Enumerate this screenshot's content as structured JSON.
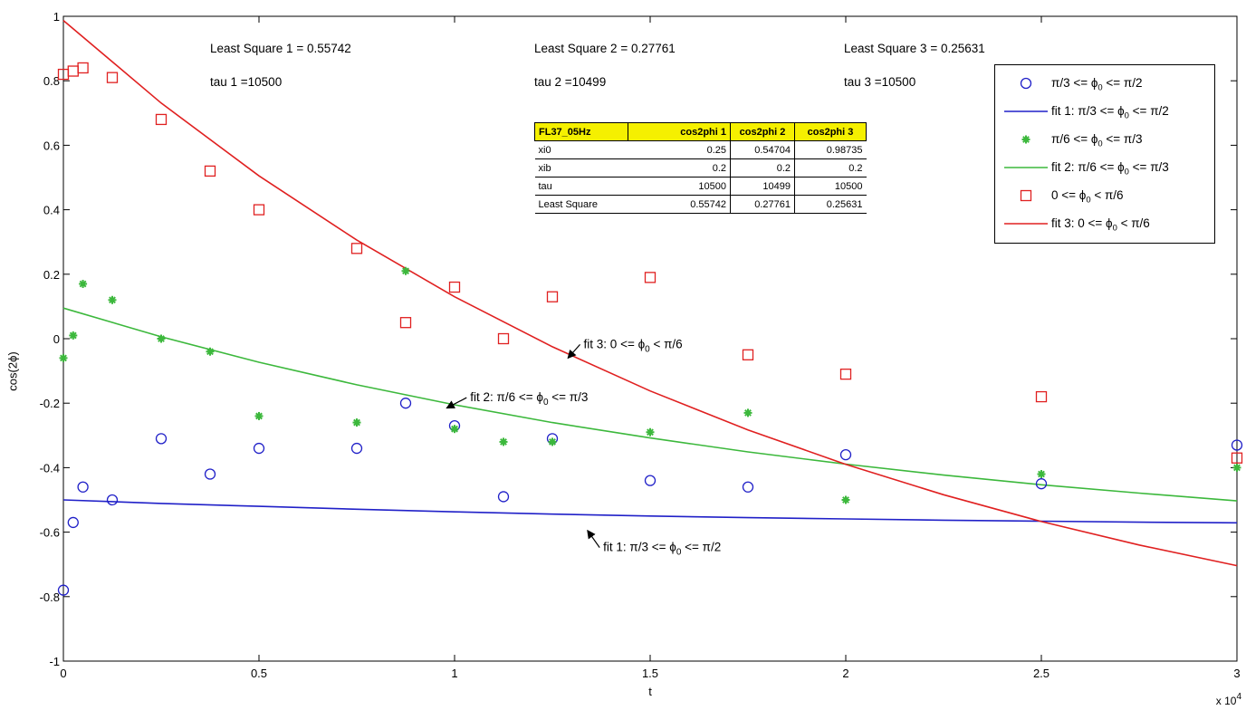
{
  "chart_data": {
    "type": "scatter",
    "xlabel": "t",
    "ylabel": "cos(2ϕ)",
    "x_multiplier_label": "x 10",
    "x_multiplier_exp": "4",
    "xlim": [
      0,
      30000
    ],
    "ylim": [
      -1,
      1
    ],
    "x_ticks": [
      0,
      5000,
      10000,
      15000,
      20000,
      25000,
      30000
    ],
    "x_tick_labels": [
      "0",
      "0.5",
      "1",
      "1.5",
      "2",
      "2.5",
      "3"
    ],
    "y_ticks": [
      -1,
      -0.8,
      -0.6,
      -0.4,
      -0.2,
      0,
      0.2,
      0.4,
      0.6,
      0.8,
      1
    ],
    "y_tick_labels": [
      "-1",
      "-0.8",
      "-0.6",
      "-0.4",
      "-0.2",
      "0",
      "0.2",
      "0.4",
      "0.6",
      "0.8",
      "1"
    ],
    "grid": false,
    "legend_position": "top-right",
    "series": [
      {
        "name": "π/3 <= ϕ₀ <= π/2",
        "legend_text": "π/3 <= ϕ",
        "legend_sub": "0",
        "legend_tail": " <= π/2",
        "kind": "points",
        "marker": "circle",
        "color": "#2020c8",
        "x": [
          0,
          250,
          500,
          1250,
          2500,
          3750,
          5000,
          7500,
          8750,
          10000,
          11250,
          12500,
          15000,
          17500,
          20000,
          25000,
          30000
        ],
        "y": [
          -0.78,
          -0.57,
          -0.46,
          -0.5,
          -0.31,
          -0.42,
          -0.34,
          -0.34,
          -0.2,
          -0.27,
          -0.49,
          -0.31,
          -0.44,
          -0.46,
          -0.36,
          -0.45,
          -0.33
        ]
      },
      {
        "name": "fit 1: π/3 <= ϕ₀ <= π/2",
        "legend_text": "fit 1: π/3 <= ϕ",
        "legend_sub": "0",
        "legend_tail": " <= π/2",
        "kind": "line",
        "color": "#2020c8",
        "x": [
          0,
          2500,
          5000,
          7500,
          10000,
          12500,
          15000,
          17500,
          20000,
          22500,
          25000,
          27500,
          30000
        ],
        "y": [
          -0.5,
          -0.511,
          -0.52,
          -0.529,
          -0.537,
          -0.544,
          -0.55,
          -0.555,
          -0.559,
          -0.563,
          -0.566,
          -0.569,
          -0.571
        ]
      },
      {
        "name": "π/6 <= ϕ₀ <= π/3",
        "legend_text": "π/6 <= ϕ",
        "legend_sub": "0",
        "legend_tail": " <= π/3",
        "kind": "points",
        "marker": "star",
        "color": "#3cb83c",
        "x": [
          0,
          250,
          500,
          1250,
          2500,
          3750,
          5000,
          7500,
          8750,
          10000,
          11250,
          12500,
          15000,
          17500,
          20000,
          25000,
          30000
        ],
        "y": [
          -0.06,
          0.01,
          0.17,
          0.12,
          0.0,
          -0.04,
          -0.24,
          -0.26,
          0.21,
          -0.28,
          -0.32,
          -0.32,
          -0.29,
          -0.23,
          -0.5,
          -0.42,
          -0.4
        ]
      },
      {
        "name": "fit 2: π/6 <= ϕ₀ <= π/3",
        "legend_text": "fit 2: π/6 <= ϕ",
        "legend_sub": "0",
        "legend_tail": " <= π/3",
        "kind": "line",
        "color": "#3cb83c",
        "x": [
          0,
          2500,
          5000,
          7500,
          10000,
          12500,
          15000,
          17500,
          20000,
          22500,
          25000,
          27500,
          30000
        ],
        "y": [
          0.095,
          0.006,
          -0.073,
          -0.143,
          -0.205,
          -0.26,
          -0.308,
          -0.351,
          -0.389,
          -0.423,
          -0.453,
          -0.479,
          -0.503
        ]
      },
      {
        "name": "0 <= ϕ₀ < π/6",
        "legend_text": "0 <= ϕ",
        "legend_sub": "0",
        "legend_tail": " < π/6",
        "kind": "points",
        "marker": "square",
        "color": "#e02020",
        "x": [
          0,
          250,
          500,
          1250,
          2500,
          3750,
          5000,
          7500,
          8750,
          10000,
          11250,
          12500,
          15000,
          17500,
          20000,
          25000,
          30000
        ],
        "y": [
          0.82,
          0.83,
          0.84,
          0.81,
          0.68,
          0.52,
          0.4,
          0.28,
          0.05,
          0.16,
          0.0,
          0.13,
          0.19,
          -0.05,
          -0.11,
          -0.18,
          -0.37
        ]
      },
      {
        "name": "fit 3: 0 <= ϕ₀ < π/6",
        "legend_text": "fit 3: 0 <= ϕ",
        "legend_sub": "0",
        "legend_tail": " < π/6",
        "kind": "line",
        "color": "#e02020",
        "x": [
          0,
          2500,
          5000,
          7500,
          10000,
          12500,
          15000,
          17500,
          20000,
          22500,
          25000,
          27500,
          30000
        ],
        "y": [
          0.987,
          0.731,
          0.505,
          0.306,
          0.13,
          -0.025,
          -0.162,
          -0.283,
          -0.39,
          -0.484,
          -0.567,
          -0.64,
          -0.704
        ]
      }
    ],
    "annotations": [
      {
        "text": "fit 3: 0 <= ϕ",
        "sub": "0",
        "tail": " < π/6",
        "x": 13300,
        "y": -0.015,
        "arrow_to": [
          12900,
          -0.06
        ]
      },
      {
        "text": "fit 2: π/6 <= ϕ",
        "sub": "0",
        "tail": " <= π/3",
        "x": 10400,
        "y": -0.18,
        "arrow_to": [
          9800,
          -0.215
        ]
      },
      {
        "text": "fit 1: π/3 <= ϕ",
        "sub": "0",
        "tail": " <= π/2",
        "x": 13800,
        "y": -0.645,
        "arrow_to": [
          13400,
          -0.595
        ]
      }
    ]
  },
  "stats": {
    "ls1": "Least Square 1 = 0.55742",
    "ls2": "Least Square 2 = 0.27761",
    "ls3": "Least Square 3 = 0.25631",
    "tau1": "tau 1 =10500",
    "tau2": "tau 2 =10499",
    "tau3": "tau 3 =10500"
  },
  "table": {
    "header": [
      "FL37_05Hz",
      "cos2phi 1",
      "cos2phi 2",
      "cos2phi 3"
    ],
    "rows": [
      [
        "xi0",
        "0.25",
        "0.54704",
        "0.98735"
      ],
      [
        "xib",
        "0.2",
        "0.2",
        "0.2"
      ],
      [
        "tau",
        "10500",
        "10499",
        "10500"
      ],
      [
        "Least Square",
        "0.55742",
        "0.27761",
        "0.25631"
      ]
    ]
  }
}
